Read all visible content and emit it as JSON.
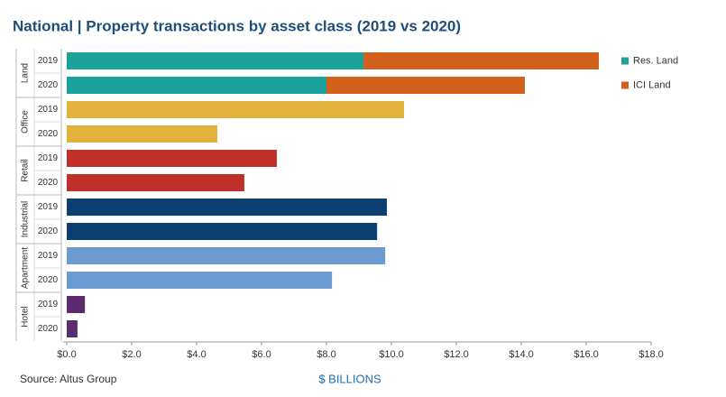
{
  "chart_data": {
    "type": "bar",
    "title": "National | Property transactions by asset class (2019 vs 2020)",
    "source": "Source:  Altus Group",
    "x_label": "$ BILLIONS",
    "groups": [
      {
        "name": "Land",
        "categories": [
          "2019",
          "2020"
        ]
      },
      {
        "name": "Office",
        "categories": [
          "2019",
          "2020"
        ]
      },
      {
        "name": "Retail",
        "categories": [
          "2019",
          "2020"
        ]
      },
      {
        "name": "Industrial",
        "categories": [
          "2019",
          "2020"
        ]
      },
      {
        "name": "Apartment",
        "categories": [
          "2019",
          "2020"
        ]
      },
      {
        "name": "Hotel",
        "categories": [
          "2019",
          "2020"
        ]
      }
    ],
    "values": [
      null,
      null,
      10.39,
      4.64,
      6.47,
      5.47,
      9.86,
      9.56,
      9.81,
      8.17,
      0.56,
      0.33
    ],
    "colors": [
      null,
      null,
      "#e3b23c",
      "#e3b23c",
      "#c0302a",
      "#c0302a",
      "#0d3f73",
      "#0d3f73",
      "#6b9bd1",
      "#6b9bd1",
      "#5c2a6e",
      "#5c2a6e"
    ],
    "series": [
      {
        "name": "Res. Land",
        "color": "#1ba29a",
        "values": [
          9.14,
          8.0,
          null,
          null,
          null,
          null,
          null,
          null,
          null,
          null,
          null,
          null
        ]
      },
      {
        "name": "ICI Land",
        "color": "#d2611c",
        "values": [
          7.25,
          6.11,
          null,
          null,
          null,
          null,
          null,
          null,
          null,
          null,
          null,
          null
        ]
      }
    ],
    "xlim": [
      0,
      18
    ],
    "xticks": [
      {
        "value": 0,
        "label": "$0.0"
      },
      {
        "value": 2,
        "label": "$2.0"
      },
      {
        "value": 4,
        "label": "$4.0"
      },
      {
        "value": 6,
        "label": "$6.0"
      },
      {
        "value": 8,
        "label": "$8.0"
      },
      {
        "value": 10,
        "label": "$10.0"
      },
      {
        "value": 12,
        "label": "$12.0"
      },
      {
        "value": 14,
        "label": "$14.0"
      },
      {
        "value": 16,
        "label": "$16.0"
      },
      {
        "value": 18,
        "label": "$18.0"
      }
    ],
    "legend": "top-right"
  }
}
